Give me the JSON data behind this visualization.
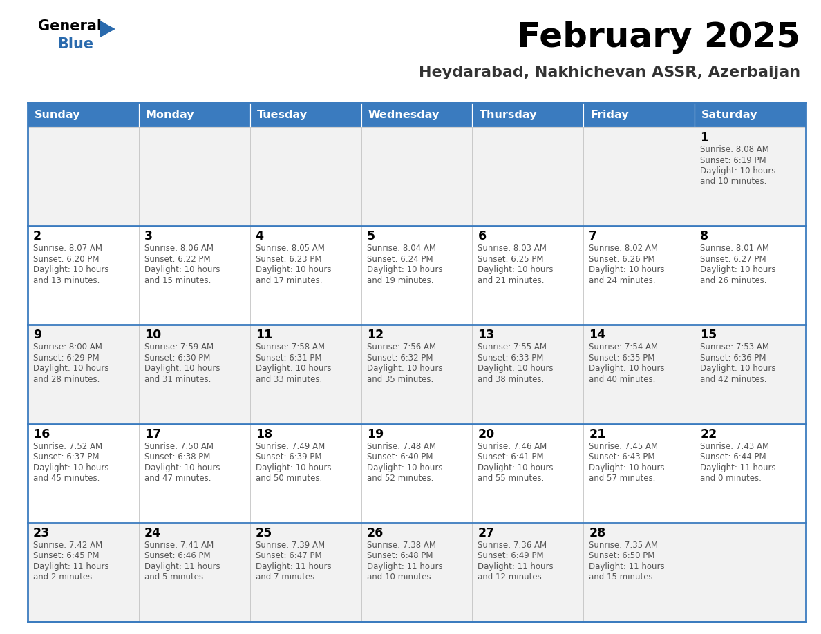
{
  "title": "February 2025",
  "subtitle": "Heydarabad, Nakhichevan ASSR, Azerbaijan",
  "header_bg_color": "#3a7bbf",
  "header_text_color": "#ffffff",
  "cell_bg_even": "#f2f2f2",
  "cell_bg_odd": "#ffffff",
  "border_color": "#3a7bbf",
  "row_separator_color": "#3a7bbf",
  "col_separator_color": "#c0c0c0",
  "title_color": "#000000",
  "subtitle_color": "#333333",
  "day_number_color": "#000000",
  "info_color": "#555555",
  "logo_general_color": "#000000",
  "logo_blue_color": "#2a6aad",
  "logo_triangle_color": "#2a6aad",
  "days_of_week": [
    "Sunday",
    "Monday",
    "Tuesday",
    "Wednesday",
    "Thursday",
    "Friday",
    "Saturday"
  ],
  "weeks": [
    [
      {
        "day": "",
        "info": ""
      },
      {
        "day": "",
        "info": ""
      },
      {
        "day": "",
        "info": ""
      },
      {
        "day": "",
        "info": ""
      },
      {
        "day": "",
        "info": ""
      },
      {
        "day": "",
        "info": ""
      },
      {
        "day": "1",
        "info": "Sunrise: 8:08 AM\nSunset: 6:19 PM\nDaylight: 10 hours\nand 10 minutes."
      }
    ],
    [
      {
        "day": "2",
        "info": "Sunrise: 8:07 AM\nSunset: 6:20 PM\nDaylight: 10 hours\nand 13 minutes."
      },
      {
        "day": "3",
        "info": "Sunrise: 8:06 AM\nSunset: 6:22 PM\nDaylight: 10 hours\nand 15 minutes."
      },
      {
        "day": "4",
        "info": "Sunrise: 8:05 AM\nSunset: 6:23 PM\nDaylight: 10 hours\nand 17 minutes."
      },
      {
        "day": "5",
        "info": "Sunrise: 8:04 AM\nSunset: 6:24 PM\nDaylight: 10 hours\nand 19 minutes."
      },
      {
        "day": "6",
        "info": "Sunrise: 8:03 AM\nSunset: 6:25 PM\nDaylight: 10 hours\nand 21 minutes."
      },
      {
        "day": "7",
        "info": "Sunrise: 8:02 AM\nSunset: 6:26 PM\nDaylight: 10 hours\nand 24 minutes."
      },
      {
        "day": "8",
        "info": "Sunrise: 8:01 AM\nSunset: 6:27 PM\nDaylight: 10 hours\nand 26 minutes."
      }
    ],
    [
      {
        "day": "9",
        "info": "Sunrise: 8:00 AM\nSunset: 6:29 PM\nDaylight: 10 hours\nand 28 minutes."
      },
      {
        "day": "10",
        "info": "Sunrise: 7:59 AM\nSunset: 6:30 PM\nDaylight: 10 hours\nand 31 minutes."
      },
      {
        "day": "11",
        "info": "Sunrise: 7:58 AM\nSunset: 6:31 PM\nDaylight: 10 hours\nand 33 minutes."
      },
      {
        "day": "12",
        "info": "Sunrise: 7:56 AM\nSunset: 6:32 PM\nDaylight: 10 hours\nand 35 minutes."
      },
      {
        "day": "13",
        "info": "Sunrise: 7:55 AM\nSunset: 6:33 PM\nDaylight: 10 hours\nand 38 minutes."
      },
      {
        "day": "14",
        "info": "Sunrise: 7:54 AM\nSunset: 6:35 PM\nDaylight: 10 hours\nand 40 minutes."
      },
      {
        "day": "15",
        "info": "Sunrise: 7:53 AM\nSunset: 6:36 PM\nDaylight: 10 hours\nand 42 minutes."
      }
    ],
    [
      {
        "day": "16",
        "info": "Sunrise: 7:52 AM\nSunset: 6:37 PM\nDaylight: 10 hours\nand 45 minutes."
      },
      {
        "day": "17",
        "info": "Sunrise: 7:50 AM\nSunset: 6:38 PM\nDaylight: 10 hours\nand 47 minutes."
      },
      {
        "day": "18",
        "info": "Sunrise: 7:49 AM\nSunset: 6:39 PM\nDaylight: 10 hours\nand 50 minutes."
      },
      {
        "day": "19",
        "info": "Sunrise: 7:48 AM\nSunset: 6:40 PM\nDaylight: 10 hours\nand 52 minutes."
      },
      {
        "day": "20",
        "info": "Sunrise: 7:46 AM\nSunset: 6:41 PM\nDaylight: 10 hours\nand 55 minutes."
      },
      {
        "day": "21",
        "info": "Sunrise: 7:45 AM\nSunset: 6:43 PM\nDaylight: 10 hours\nand 57 minutes."
      },
      {
        "day": "22",
        "info": "Sunrise: 7:43 AM\nSunset: 6:44 PM\nDaylight: 11 hours\nand 0 minutes."
      }
    ],
    [
      {
        "day": "23",
        "info": "Sunrise: 7:42 AM\nSunset: 6:45 PM\nDaylight: 11 hours\nand 2 minutes."
      },
      {
        "day": "24",
        "info": "Sunrise: 7:41 AM\nSunset: 6:46 PM\nDaylight: 11 hours\nand 5 minutes."
      },
      {
        "day": "25",
        "info": "Sunrise: 7:39 AM\nSunset: 6:47 PM\nDaylight: 11 hours\nand 7 minutes."
      },
      {
        "day": "26",
        "info": "Sunrise: 7:38 AM\nSunset: 6:48 PM\nDaylight: 11 hours\nand 10 minutes."
      },
      {
        "day": "27",
        "info": "Sunrise: 7:36 AM\nSunset: 6:49 PM\nDaylight: 11 hours\nand 12 minutes."
      },
      {
        "day": "28",
        "info": "Sunrise: 7:35 AM\nSunset: 6:50 PM\nDaylight: 11 hours\nand 15 minutes."
      },
      {
        "day": "",
        "info": ""
      }
    ]
  ],
  "figwidth": 11.88,
  "figheight": 9.18,
  "dpi": 100
}
